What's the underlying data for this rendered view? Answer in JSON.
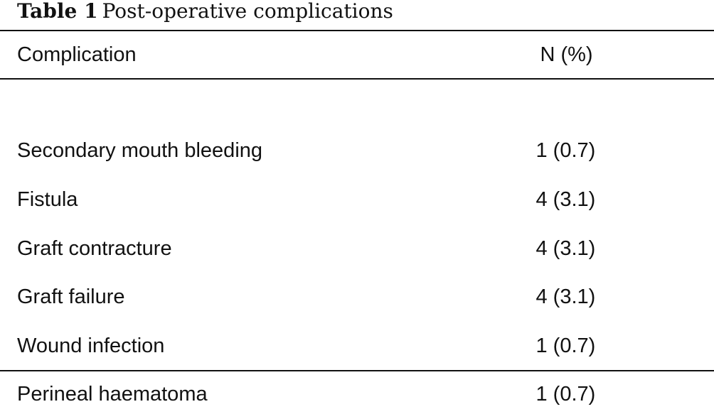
{
  "caption": {
    "label": "Table 1",
    "title": "Post-operative complications"
  },
  "table": {
    "headers": {
      "complication": "Complication",
      "n_percent": "N (%)"
    },
    "rows": [
      {
        "complication": "Secondary mouth bleeding",
        "n_percent": "1 (0.7)"
      },
      {
        "complication": "Fistula",
        "n_percent": "4 (3.1)"
      },
      {
        "complication": "Graft contracture",
        "n_percent": "4 (3.1)"
      },
      {
        "complication": "Graft failure",
        "n_percent": "4 (3.1)"
      },
      {
        "complication": "Wound infection",
        "n_percent": "1 (0.7)"
      },
      {
        "complication": "Perineal haematoma",
        "n_percent": "1 (0.7)"
      }
    ]
  }
}
